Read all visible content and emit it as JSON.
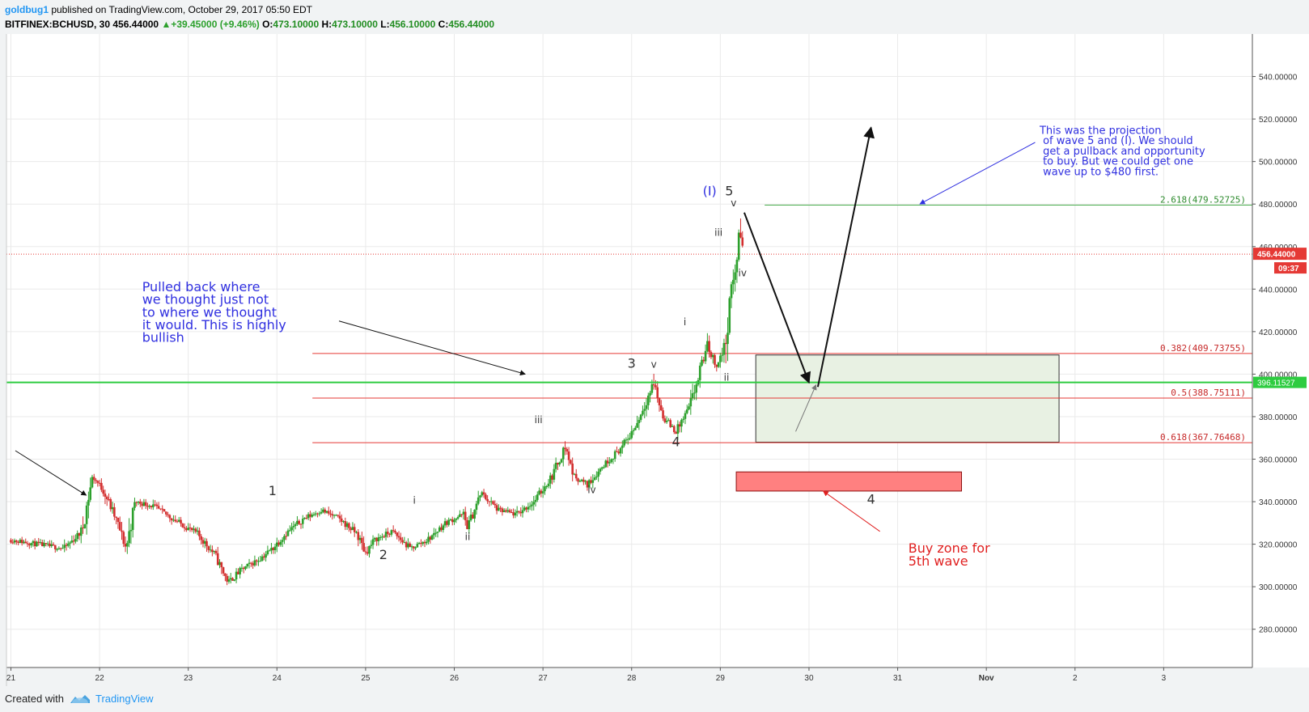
{
  "header": {
    "author": "goldbug1",
    "published": " published on TradingView.com, October 29, 2017 05:50 EDT",
    "symbol": "BITFINEX:BCHUSD, 30",
    "last": "456.44000",
    "change": "▲+39.45000 (+9.46%)",
    "open_label": "O:",
    "open": "473.10000",
    "high_label": "H:",
    "high": "473.10000",
    "low_label": "L:",
    "low": "456.10000",
    "close_label": "C:",
    "close": "456.44000"
  },
  "footer": {
    "created_with": "Created with",
    "brand": "TradingView",
    "logo_icon": "tradingview-logo-icon"
  },
  "colors": {
    "up": "#2ca02c",
    "down": "#d32f2f",
    "fib_red": "#e53935",
    "fib_green": "#4caf50",
    "support": "#2ecc40",
    "price_line": "#e53935",
    "annotation_blue": "#3030e0",
    "annotation_red": "#e02020",
    "wave_label": "#333333"
  },
  "chart_data": {
    "type": "candlestick",
    "symbol": "BITFINEX:BCHUSD",
    "timeframe": "30",
    "x_ticks": [
      "21",
      "22",
      "23",
      "24",
      "25",
      "26",
      "27",
      "28",
      "29",
      "30",
      "31",
      "Nov",
      "2",
      "3"
    ],
    "y_ticks": [
      280,
      300,
      320,
      340,
      360,
      380,
      400,
      420,
      440,
      460,
      480,
      500,
      520,
      540
    ],
    "y_tick_labels": [
      "280.00000",
      "300.00000",
      "320.00000",
      "340.00000",
      "360.00000",
      "380.00000",
      "400.00000",
      "420.00000",
      "440.00000",
      "460.00000",
      "480.00000",
      "500.00000",
      "520.00000",
      "540.00000"
    ],
    "ylim": [
      262,
      560
    ],
    "xlim_days": [
      20.95,
      35.0
    ],
    "grid": true,
    "last_price": 456.44,
    "last_price_label": "456.44000",
    "countdown": "09:37",
    "support_level": 396.11527,
    "support_label": "396.11527",
    "price_path": [
      [
        21.0,
        322
      ],
      [
        21.3,
        320
      ],
      [
        21.6,
        318
      ],
      [
        21.8,
        326
      ],
      [
        21.92,
        352
      ],
      [
        22.05,
        345
      ],
      [
        22.2,
        330
      ],
      [
        22.3,
        318
      ],
      [
        22.4,
        340
      ],
      [
        22.6,
        338
      ],
      [
        22.9,
        330
      ],
      [
        23.1,
        325
      ],
      [
        23.3,
        315
      ],
      [
        23.45,
        302
      ],
      [
        23.6,
        308
      ],
      [
        23.8,
        313
      ],
      [
        23.95,
        318
      ],
      [
        24.1,
        325
      ],
      [
        24.3,
        332
      ],
      [
        24.5,
        336
      ],
      [
        24.7,
        332
      ],
      [
        24.9,
        325
      ],
      [
        25.0,
        316
      ],
      [
        25.1,
        322
      ],
      [
        25.3,
        326
      ],
      [
        25.5,
        318
      ],
      [
        25.7,
        322
      ],
      [
        25.9,
        330
      ],
      [
        26.1,
        334
      ],
      [
        26.15,
        328
      ],
      [
        26.3,
        344
      ],
      [
        26.5,
        336
      ],
      [
        26.7,
        334
      ],
      [
        26.9,
        340
      ],
      [
        27.1,
        352
      ],
      [
        27.25,
        366
      ],
      [
        27.35,
        352
      ],
      [
        27.5,
        348
      ],
      [
        27.7,
        358
      ],
      [
        27.9,
        366
      ],
      [
        28.05,
        376
      ],
      [
        28.25,
        396
      ],
      [
        28.35,
        380
      ],
      [
        28.5,
        373
      ],
      [
        28.65,
        384
      ],
      [
        28.75,
        398
      ],
      [
        28.85,
        414
      ],
      [
        28.95,
        404
      ],
      [
        29.05,
        412
      ],
      [
        29.12,
        438
      ],
      [
        29.18,
        452
      ],
      [
        29.22,
        470
      ],
      [
        29.26,
        456.44
      ]
    ],
    "fibonacci": [
      {
        "level": 409.73755,
        "label": "0.382(409.73755)",
        "start_day": 24.4
      },
      {
        "level": 388.75111,
        "label": "0.5(388.75111)",
        "start_day": 24.4
      },
      {
        "level": 367.76468,
        "label": "0.618(367.76468)",
        "start_day": 24.4
      },
      {
        "level": 479.52725,
        "label": "2.618(479.52725)",
        "start_day": 29.5
      }
    ],
    "zones": [
      {
        "name": "target-zone",
        "day_start": 29.4,
        "day_end": 32.82,
        "price_top": 409,
        "price_bottom": 368
      },
      {
        "name": "buy-zone",
        "day_start": 29.18,
        "day_end": 31.72,
        "price_top": 354,
        "price_bottom": 345
      }
    ],
    "wave_labels": [
      {
        "text": "1",
        "day": 23.95,
        "price": 343
      },
      {
        "text": "2",
        "day": 25.2,
        "price": 313
      },
      {
        "text": "3",
        "day": 28.0,
        "price": 403
      },
      {
        "text": "4",
        "day": 28.5,
        "price": 366
      },
      {
        "text": "5",
        "day": 29.1,
        "price": 484
      },
      {
        "text": "(I)",
        "day": 28.88,
        "price": 484
      },
      {
        "text": "4",
        "day": 30.7,
        "price": 339
      },
      {
        "text": "i",
        "day": 25.55,
        "price": 339
      },
      {
        "text": "ii",
        "day": 26.15,
        "price": 322
      },
      {
        "text": "iii",
        "day": 26.95,
        "price": 377
      },
      {
        "text": "iv",
        "day": 27.55,
        "price": 344
      },
      {
        "text": "v",
        "day": 28.25,
        "price": 403
      },
      {
        "text": "i",
        "day": 28.6,
        "price": 423
      },
      {
        "text": "ii",
        "day": 29.07,
        "price": 397
      },
      {
        "text": "iii",
        "day": 28.98,
        "price": 465
      },
      {
        "text": "iv",
        "day": 29.25,
        "price": 446
      },
      {
        "text": "v",
        "day": 29.15,
        "price": 479
      }
    ],
    "annotations": [
      {
        "name": "annotation-pullback",
        "color": "blue",
        "day": 22.48,
        "price": 439,
        "lines": [
          "Pulled back where",
          "we thought just not",
          "to where we thought",
          "it would. This is highly",
          "bullish"
        ]
      },
      {
        "name": "annotation-projection",
        "color": "blue",
        "day": 32.6,
        "price": 513,
        "lines": [
          "This was the projection",
          "   of wave 5 and (I). We should",
          "   get a pullback and opportunity",
          "   to buy. But we could get one",
          "   wave up to $480 first."
        ]
      },
      {
        "name": "annotation-buy-zone",
        "color": "red",
        "day": 31.12,
        "price": 316,
        "lines": [
          "Buy zone for",
          "5th wave"
        ]
      }
    ]
  }
}
